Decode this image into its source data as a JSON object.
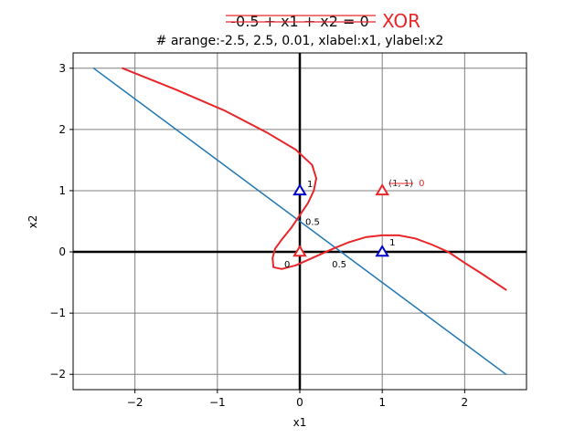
{
  "annotation": {
    "equation": "-0.5 + x1 + x2 = 0",
    "tag": "XOR",
    "tag_color": "#e8262a"
  },
  "chart_data": {
    "type": "line",
    "title": "# arange:-2.5, 2.5, 0.01, xlabel:x1, ylabel:x2",
    "xlabel": "x1",
    "ylabel": "x2",
    "xlim": [
      -2.75,
      2.75
    ],
    "ylim": [
      -2.25,
      3.25
    ],
    "xticks": [
      -2,
      -1,
      0,
      1,
      2
    ],
    "yticks": [
      -2,
      -1,
      0,
      1,
      2,
      3
    ],
    "xtick_labels": [
      "−2",
      "−1",
      "0",
      "1",
      "2"
    ],
    "ytick_labels": [
      "−2",
      "−1",
      "0",
      "1",
      "2",
      "3"
    ],
    "grid": true,
    "series": [
      {
        "color": "#1f77b4",
        "x": [
          -2.5,
          2.5
        ],
        "y": [
          3.0,
          -2.0
        ]
      },
      {
        "color": "#e8262a",
        "x": [
          -2.15,
          -1.5,
          -0.9,
          -0.4,
          -0.05,
          0.15,
          0.2,
          0.17,
          0.1,
          0.0,
          -0.1,
          -0.22,
          -0.3,
          -0.33,
          -0.32,
          -0.22,
          -0.05,
          0.15,
          0.4,
          0.6,
          0.8,
          1.0,
          1.2,
          1.4,
          1.6,
          1.8,
          2.0,
          2.2,
          2.5
        ],
        "y": [
          3.0,
          2.65,
          2.3,
          1.95,
          1.67,
          1.42,
          1.2,
          1.0,
          0.8,
          0.6,
          0.4,
          0.2,
          0.05,
          -0.1,
          -0.25,
          -0.28,
          -0.22,
          -0.1,
          0.05,
          0.16,
          0.24,
          0.27,
          0.27,
          0.22,
          0.12,
          0.0,
          -0.18,
          -0.35,
          -0.62
        ]
      }
    ],
    "points": [
      {
        "x": 0,
        "y": 0,
        "color": "#e8262a",
        "label": "0"
      },
      {
        "x": 1,
        "y": 0,
        "color": "#0000cc",
        "label": "1"
      },
      {
        "x": 0,
        "y": 1,
        "color": "#0000cc",
        "label": "1"
      },
      {
        "x": 1,
        "y": 1,
        "color": "#e8262a",
        "label": "(1, 1)",
        "value": "0"
      }
    ],
    "intercepts": [
      {
        "x": 0.5,
        "y": 0,
        "label": "0.5"
      },
      {
        "x": 0,
        "y": 0.5,
        "label": "0.5"
      }
    ]
  }
}
